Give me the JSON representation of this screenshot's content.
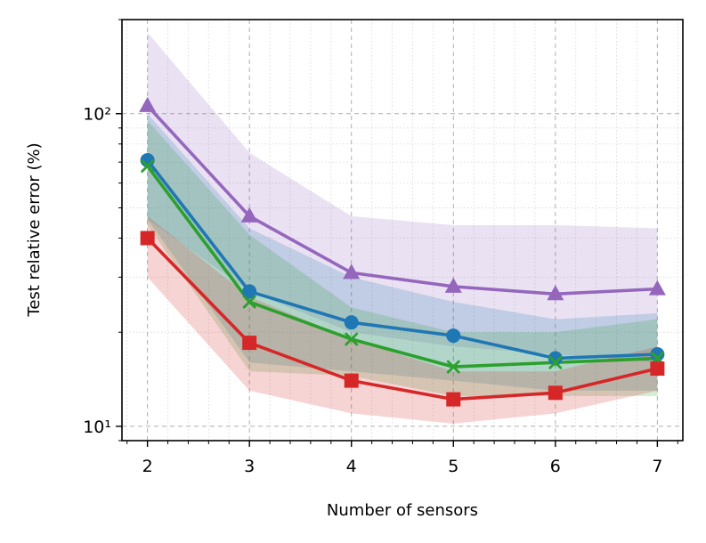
{
  "chart_data": {
    "type": "line",
    "title": "",
    "xlabel": "Number of sensors",
    "ylabel": "Test relative error (%)",
    "yscale": "log",
    "x": [
      2,
      3,
      4,
      5,
      6,
      7
    ],
    "x_tick_labels": [
      "2",
      "3",
      "4",
      "5",
      "6",
      "7"
    ],
    "xlim": [
      1.75,
      7.25
    ],
    "ylim": [
      9.0,
      200.0
    ],
    "y_major_ticks": [
      10,
      100
    ],
    "y_tick_labels": [
      "10¹",
      "10²"
    ],
    "y_minor_ticks": [
      9,
      20,
      30,
      40,
      50,
      60,
      70,
      80,
      90,
      200
    ],
    "x_minor_ticks": [
      1.8,
      2.2,
      2.4,
      2.6,
      2.8,
      3.2,
      3.4,
      3.6,
      3.8,
      4.2,
      4.4,
      4.6,
      4.8,
      5.2,
      5.4,
      5.6,
      5.8,
      6.2,
      6.4,
      6.6,
      6.8,
      7.2
    ],
    "grid": true,
    "legend": "none",
    "series": [
      {
        "name": "purple",
        "color": "#9467bd",
        "marker": "triangle",
        "values": [
          106,
          47,
          31,
          28,
          26.5,
          27.5
        ],
        "lower": [
          46,
          27,
          20,
          18,
          17,
          16
        ],
        "upper": [
          182,
          75,
          47,
          44,
          44,
          43
        ]
      },
      {
        "name": "blue",
        "color": "#1f77b4",
        "marker": "circle",
        "values": [
          71,
          27,
          21.5,
          19.5,
          16.5,
          17
        ],
        "lower": [
          46,
          16,
          15,
          14,
          13,
          13
        ],
        "upper": [
          100,
          43,
          30,
          25,
          22,
          23
        ]
      },
      {
        "name": "green",
        "color": "#2ca02c",
        "marker": "x",
        "values": [
          68,
          25,
          19,
          15.5,
          16,
          16.5
        ],
        "lower": [
          44,
          15,
          14.5,
          12.5,
          12.5,
          12.5
        ],
        "upper": [
          95,
          41,
          24,
          20,
          20,
          22
        ]
      },
      {
        "name": "red",
        "color": "#d62728",
        "marker": "square",
        "values": [
          40,
          18.5,
          14,
          12.2,
          12.8,
          15.3
        ],
        "lower": [
          30,
          13,
          11,
          10.2,
          11,
          13
        ],
        "upper": [
          47,
          26,
          19,
          15,
          15,
          18
        ]
      }
    ]
  }
}
